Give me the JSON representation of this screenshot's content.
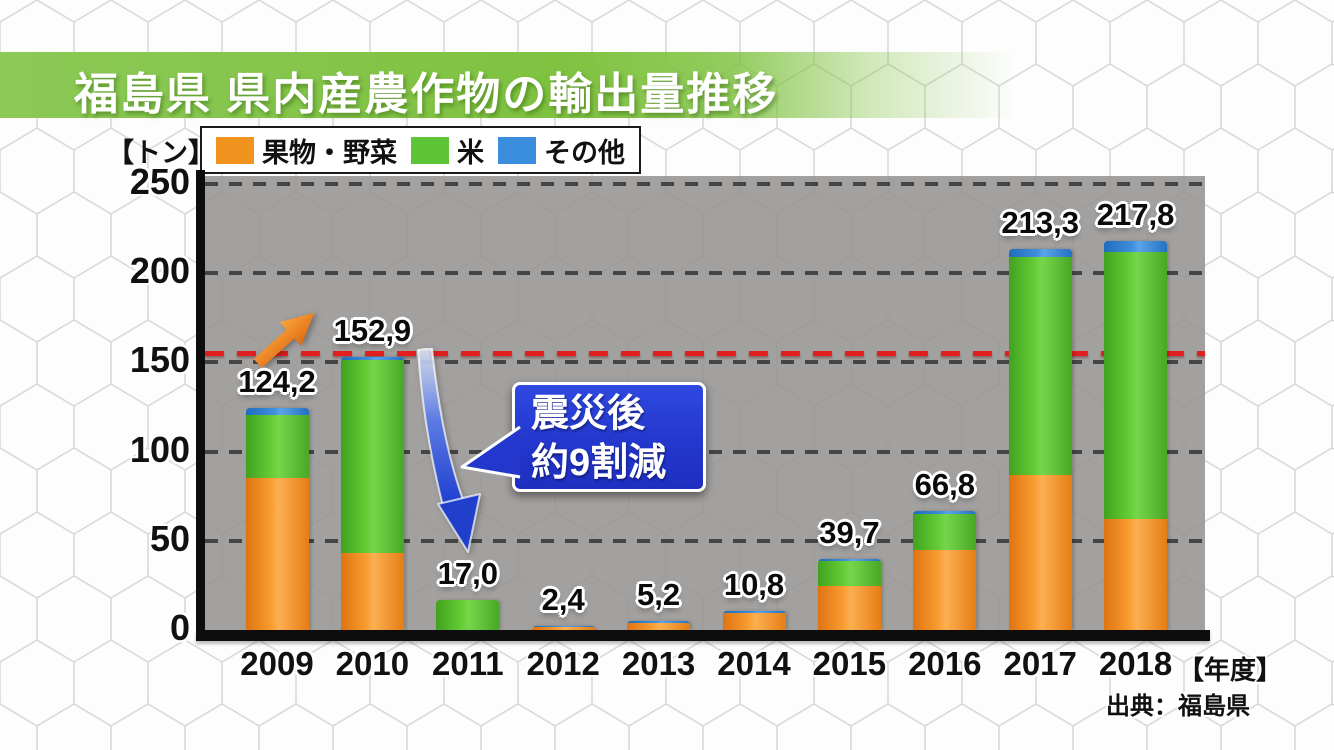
{
  "banner": {
    "title": "福島県 県内産農作物の輸出量推移"
  },
  "unit_label": "【トン】",
  "legend": [
    {
      "label": "果物・野菜",
      "color": "#f0941f"
    },
    {
      "label": "米",
      "color": "#5dc436"
    },
    {
      "label": "その他",
      "color": "#3b8ede"
    }
  ],
  "annotation": {
    "line1": "震災後",
    "line2": "約9割減"
  },
  "axis_suffix": "【年度】",
  "source": "出典：福島県",
  "colors": {
    "banner_green": "#7fc240",
    "callout_blue": "#2437cd",
    "reference_red": "#e21f1f"
  },
  "chart_data": {
    "type": "bar",
    "stacked": true,
    "title": "福島県 県内産農作物の輸出量推移",
    "ylabel": "トン",
    "xlabel": "年度",
    "ylim": [
      0,
      250
    ],
    "yticks": [
      0,
      50,
      100,
      150,
      200,
      250
    ],
    "grid": true,
    "legend_position": "top",
    "categories": [
      "2009",
      "2010",
      "2011",
      "2012",
      "2013",
      "2014",
      "2015",
      "2016",
      "2017",
      "2018"
    ],
    "series": [
      {
        "name": "果物・野菜",
        "color": "#f0941f",
        "values": [
          85.0,
          43.0,
          0,
          1.6,
          4.2,
          9.3,
          24.5,
          45.0,
          87.0,
          62.0
        ]
      },
      {
        "name": "米",
        "color": "#5dc436",
        "values": [
          35.5,
          108.2,
          17.0,
          0,
          0,
          0,
          14.0,
          20.3,
          122.3,
          149.8
        ]
      },
      {
        "name": "その他",
        "color": "#3b8ede",
        "values": [
          3.7,
          1.7,
          0,
          0.8,
          1.0,
          1.5,
          1.2,
          1.5,
          4.0,
          6.0
        ]
      }
    ],
    "totals": [
      124.2,
      152.9,
      17.0,
      2.4,
      5.2,
      10.8,
      39.7,
      66.8,
      213.3,
      217.8
    ],
    "total_labels": [
      "124,2",
      "152,9",
      "17,0",
      "2,4",
      "5,2",
      "10,8",
      "39,7",
      "66,8",
      "213,3",
      "217,8"
    ],
    "reference_line": {
      "value": 155,
      "color": "#e21f1f"
    }
  }
}
